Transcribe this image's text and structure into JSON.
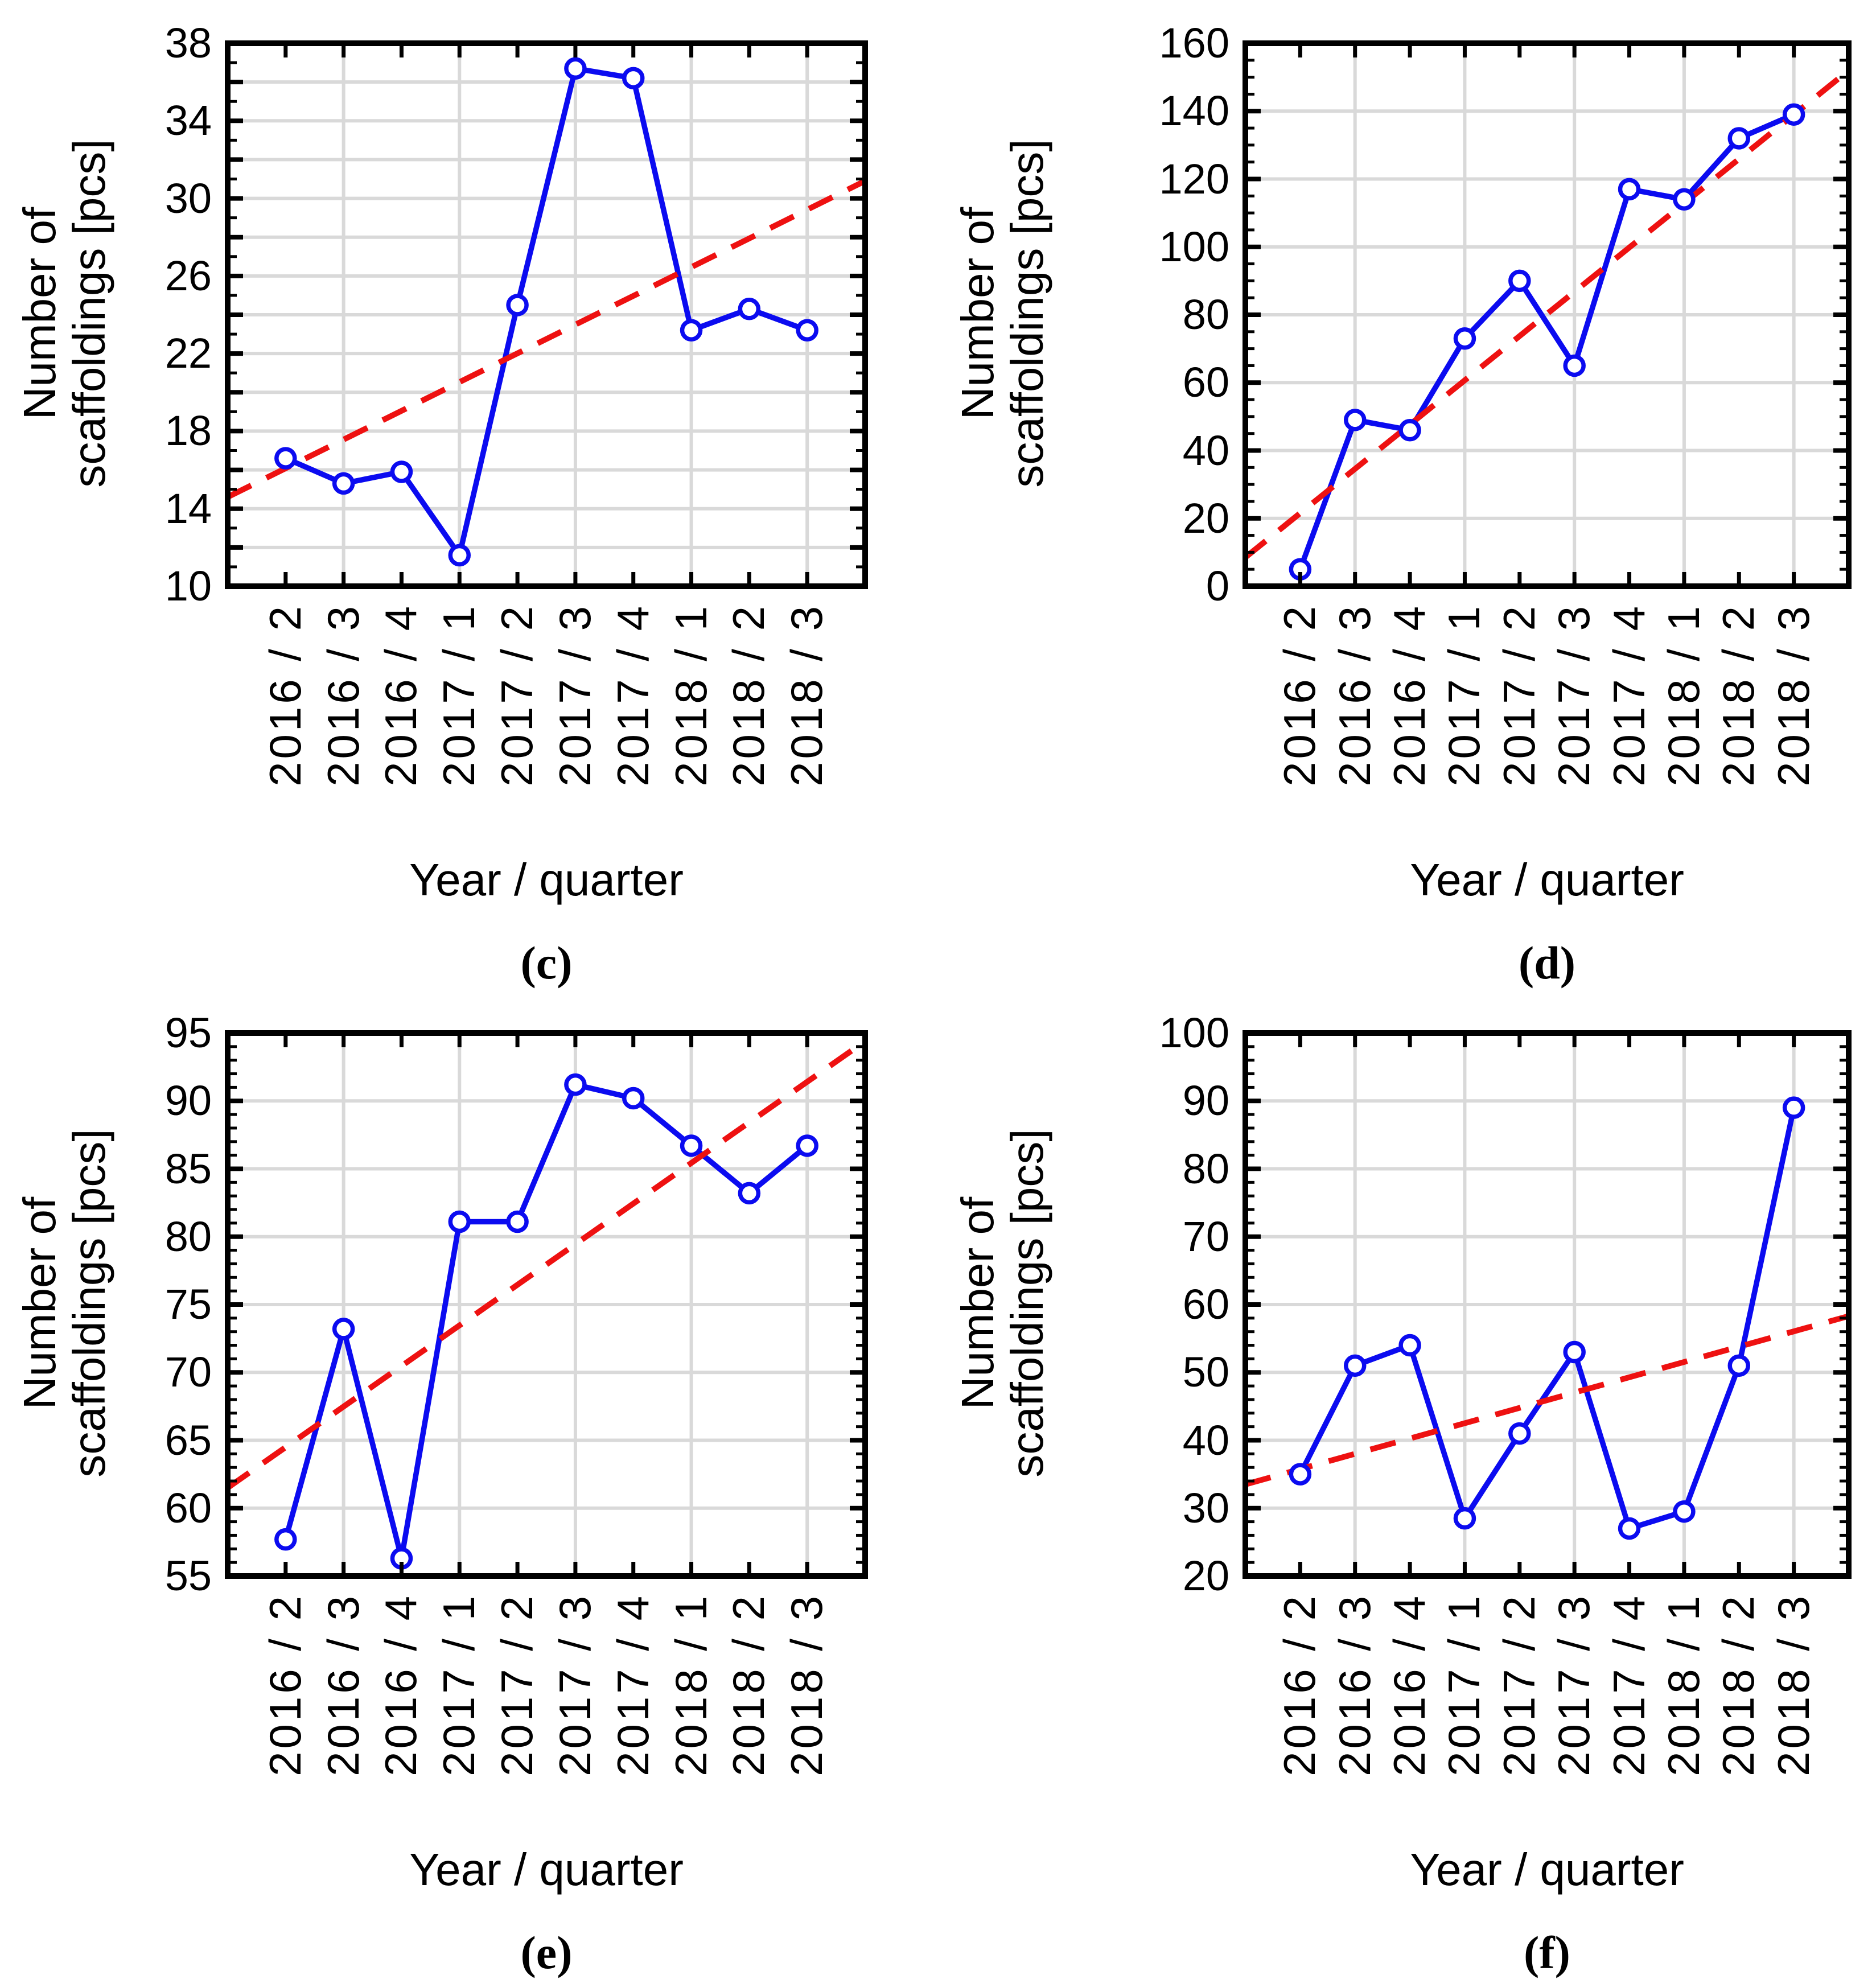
{
  "figure": {
    "background": "#ffffff",
    "rows": 2,
    "cols": 2
  },
  "style": {
    "series_color": "#0b0bf0",
    "trend_color": "#ee1111",
    "grid_color": "#d9d9d9",
    "axis_color": "#000000",
    "text_color": "#000000",
    "marker_fill": "#ffffff"
  },
  "chart_data": [
    {
      "type": "line",
      "caption": "(c)",
      "xlabel": "Year / quarter",
      "ylabel": "Number of scaffoldings [pcs]",
      "ylabel_line1": "Number of",
      "ylabel_line2": "scaffoldings [pcs]",
      "categories": [
        "2016 / 2",
        "2016 / 3",
        "2016 / 4",
        "2017 / 1",
        "2017 / 2",
        "2017 / 3",
        "2017 / 4",
        "2018 / 1",
        "2018 / 2",
        "2018 / 3"
      ],
      "series": [
        {
          "name": "number of scaffoldings",
          "values": [
            16.6,
            15.3,
            15.9,
            11.6,
            24.5,
            36.7,
            36.2,
            23.2,
            24.3,
            23.2
          ]
        }
      ],
      "trend_line": {
        "style": "dashed",
        "left_edge_value": 14.6,
        "right_edge_value": 30.9
      },
      "ylim": [
        10,
        38
      ],
      "y_tick_labels": [
        "10",
        "14",
        "18",
        "22",
        "26",
        "30",
        "34",
        "38"
      ],
      "y_major_tick_step": 4,
      "y_gridline_step": 2,
      "y_minor_tick_step": 1,
      "grid": true,
      "legend": "none"
    },
    {
      "type": "line",
      "caption": "(d)",
      "xlabel": "Year / quarter",
      "ylabel": "Number of scaffoldings [pcs]",
      "ylabel_line1": "Number of",
      "ylabel_line2": "scaffoldings [pcs]",
      "categories": [
        "2016 / 2",
        "2016 / 3",
        "2016 / 4",
        "2017 / 1",
        "2017 / 2",
        "2017 / 3",
        "2017 / 4",
        "2018 / 1",
        "2018 / 2",
        "2018 / 3"
      ],
      "series": [
        {
          "name": "number of scaffoldings",
          "values": [
            5,
            49,
            46,
            73,
            90,
            65,
            117,
            114,
            132,
            139
          ]
        }
      ],
      "trend_line": {
        "style": "dashed",
        "left_edge_value": 8.5,
        "right_edge_value": 152
      },
      "ylim": [
        0,
        160
      ],
      "y_tick_labels": [
        "0",
        "20",
        "40",
        "60",
        "80",
        "100",
        "120",
        "140",
        "160"
      ],
      "y_major_tick_step": 20,
      "y_gridline_step": 20,
      "y_minor_tick_step": 5,
      "grid": true,
      "legend": "none"
    },
    {
      "type": "line",
      "caption": "(e)",
      "xlabel": "Year / quarter",
      "ylabel": "Number of scaffoldings [pcs]",
      "ylabel_line1": "Number of",
      "ylabel_line2": "scaffoldings [pcs]",
      "categories": [
        "2016 / 2",
        "2016 / 3",
        "2016 / 4",
        "2017 / 1",
        "2017 / 2",
        "2017 / 3",
        "2017 / 4",
        "2018 / 1",
        "2018 / 2",
        "2018 / 3"
      ],
      "series": [
        {
          "name": "number of scaffoldings",
          "values": [
            57.7,
            73.2,
            56.3,
            81.1,
            81.1,
            91.2,
            90.2,
            86.7,
            83.2,
            86.7
          ]
        }
      ],
      "trend_line": {
        "style": "dashed",
        "left_edge_value": 61.5,
        "right_edge_value": 94.4
      },
      "ylim": [
        55,
        95
      ],
      "y_tick_labels": [
        "55",
        "60",
        "65",
        "70",
        "75",
        "80",
        "85",
        "90",
        "95"
      ],
      "y_major_tick_step": 5,
      "y_gridline_step": 5,
      "y_minor_tick_step": 1,
      "grid": true,
      "legend": "none"
    },
    {
      "type": "line",
      "caption": "(f)",
      "xlabel": "Year / quarter",
      "ylabel": "Number of scaffoldings [pcs]",
      "ylabel_line1": "Number of",
      "ylabel_line2": "scaffoldings [pcs]",
      "categories": [
        "2016 / 2",
        "2016 / 3",
        "2016 / 4",
        "2017 / 1",
        "2017 / 2",
        "2017 / 3",
        "2017 / 4",
        "2018 / 1",
        "2018 / 2",
        "2018 / 3"
      ],
      "series": [
        {
          "name": "number of scaffoldings",
          "values": [
            35,
            51,
            54,
            28.5,
            41,
            53,
            27,
            29.5,
            51,
            89
          ]
        }
      ],
      "trend_line": {
        "style": "dashed",
        "left_edge_value": 33.5,
        "right_edge_value": 58.3
      },
      "ylim": [
        20,
        100
      ],
      "y_tick_labels": [
        "20",
        "30",
        "40",
        "50",
        "60",
        "70",
        "80",
        "90",
        "100"
      ],
      "y_major_tick_step": 10,
      "y_gridline_step": 10,
      "y_minor_tick_step": 2,
      "grid": true,
      "legend": "none"
    }
  ]
}
